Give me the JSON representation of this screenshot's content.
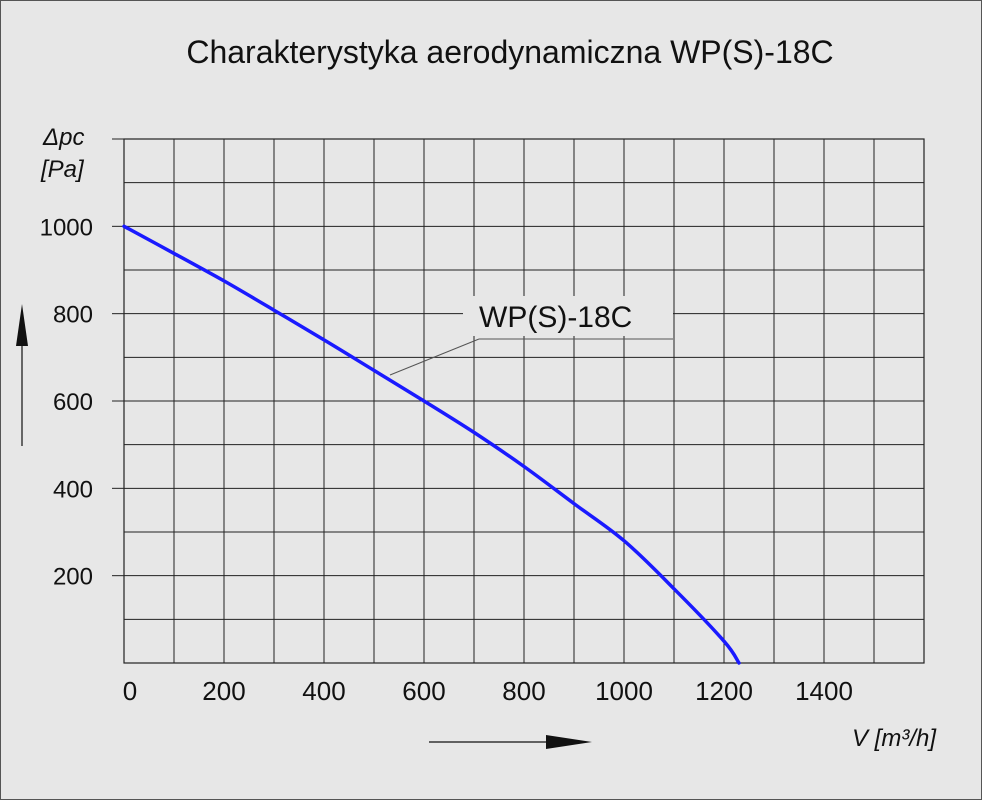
{
  "chart_data": {
    "type": "line",
    "title": "Charakterystyka aerodynamiczna  WP(S)-18C",
    "xlabel": "V [m³/h]",
    "ylabel_symbol": "Δpc",
    "ylabel_unit": "[Pa]",
    "xlim": [
      0,
      1600
    ],
    "ylim": [
      0,
      1200
    ],
    "x_ticks": [
      0,
      200,
      400,
      600,
      800,
      1000,
      1200,
      1400
    ],
    "y_ticks": [
      200,
      400,
      600,
      800,
      1000
    ],
    "grid": true,
    "series": [
      {
        "name": "WP(S)-18C",
        "color": "#1a1aff",
        "x": [
          0,
          100,
          200,
          300,
          400,
          500,
          600,
          700,
          800,
          900,
          1000,
          1100,
          1200,
          1230
        ],
        "y": [
          1000,
          938,
          875,
          808,
          740,
          670,
          600,
          528,
          450,
          365,
          280,
          170,
          50,
          0
        ]
      }
    ]
  }
}
